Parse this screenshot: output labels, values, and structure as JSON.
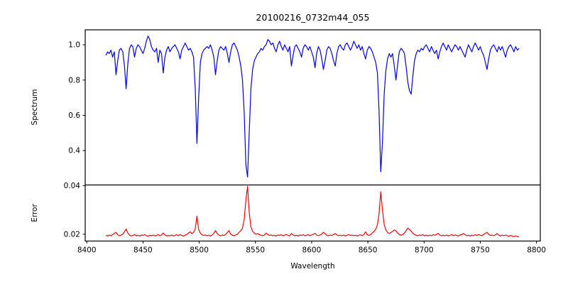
{
  "figure": {
    "title": "20100216_0732m44_055",
    "background": "#ffffff",
    "frame_color": "#000000"
  },
  "chart_data": [
    {
      "type": "line",
      "panel": "spectrum",
      "title": "20100216_0732m44_055",
      "ylabel": "Spectrum",
      "line_color": "#0000ee",
      "xlim": [
        8398.6,
        8803.4
      ],
      "ylim": [
        0.205,
        1.085
      ],
      "yticks": [
        1.0,
        0.8,
        0.6,
        0.4
      ],
      "yticklabels": [
        "1.0",
        "0.8",
        "0.6",
        "0.4"
      ],
      "grid": false,
      "legend": null,
      "x_start": 8417,
      "x_step": 1.5,
      "values": [
        0.94,
        0.96,
        0.95,
        0.97,
        0.93,
        0.96,
        0.83,
        0.91,
        0.97,
        0.98,
        0.96,
        0.88,
        0.75,
        0.89,
        0.98,
        1.0,
        0.99,
        0.93,
        0.98,
        1.0,
        0.99,
        0.97,
        0.95,
        0.98,
        1.02,
        1.05,
        1.03,
        0.99,
        0.97,
        0.96,
        0.98,
        0.9,
        0.97,
        0.95,
        0.84,
        0.93,
        0.97,
        0.99,
        0.96,
        0.98,
        0.99,
        1.0,
        0.98,
        0.96,
        0.92,
        0.97,
        0.99,
        1.01,
        0.99,
        0.97,
        0.98,
        0.96,
        0.93,
        0.75,
        0.44,
        0.7,
        0.9,
        0.95,
        0.97,
        0.98,
        0.99,
        0.98,
        1.0,
        0.97,
        0.93,
        0.83,
        0.91,
        0.97,
        0.99,
        0.98,
        0.97,
        0.99,
        0.95,
        0.9,
        0.96,
        1.0,
        1.01,
        0.99,
        0.97,
        0.93,
        0.88,
        0.8,
        0.62,
        0.32,
        0.25,
        0.5,
        0.75,
        0.86,
        0.91,
        0.93,
        0.95,
        0.96,
        0.98,
        0.97,
        0.99,
        1.0,
        1.03,
        1.02,
        1.0,
        1.01,
        0.98,
        0.96,
        1.0,
        1.02,
        0.99,
        0.97,
        1.0,
        0.98,
        0.96,
        0.99,
        0.88,
        0.94,
        0.99,
        1.0,
        0.98,
        0.96,
        0.93,
        0.98,
        1.0,
        0.99,
        0.97,
        0.99,
        0.96,
        0.93,
        0.87,
        0.95,
        0.99,
        0.97,
        0.92,
        0.86,
        0.91,
        0.97,
        0.99,
        0.98,
        0.95,
        0.91,
        0.88,
        0.95,
        0.99,
        1.0,
        0.98,
        0.97,
        1.0,
        1.01,
        0.99,
        0.97,
        0.99,
        1.02,
        1.0,
        0.98,
        1.0,
        0.97,
        0.99,
        0.95,
        0.92,
        0.97,
        0.99,
        0.98,
        0.96,
        0.93,
        0.9,
        0.84,
        0.62,
        0.28,
        0.45,
        0.72,
        0.85,
        0.92,
        0.95,
        0.93,
        0.95,
        0.88,
        0.8,
        0.89,
        0.96,
        0.98,
        0.97,
        0.95,
        0.88,
        0.79,
        0.74,
        0.72,
        0.82,
        0.91,
        0.95,
        0.97,
        0.96,
        0.98,
        0.97,
        0.99,
        1.0,
        0.98,
        0.96,
        0.99,
        0.97,
        0.95,
        0.97,
        0.92,
        0.96,
        0.99,
        1.01,
        0.99,
        0.97,
        1.0,
        0.98,
        0.96,
        0.98,
        1.0,
        0.99,
        0.97,
        0.99,
        0.97,
        0.95,
        0.93,
        0.97,
        1.0,
        0.98,
        0.96,
        0.99,
        1.01,
        0.99,
        0.97,
        0.99,
        0.96,
        0.94,
        0.9,
        0.86,
        0.92,
        0.97,
        0.99,
        1.0,
        0.98,
        0.96,
        0.99,
        0.97,
        0.99,
        0.96,
        0.93,
        0.97,
        0.99,
        1.0,
        0.98,
        0.96,
        0.99,
        0.97,
        0.98
      ]
    },
    {
      "type": "line",
      "panel": "error",
      "ylabel": "Error",
      "xlabel": "Wavelength",
      "line_color": "#ff0000",
      "xlim": [
        8398.6,
        8803.4
      ],
      "ylim": [
        0.0172,
        0.0403
      ],
      "yticks": [
        0.04,
        0.02
      ],
      "yticklabels": [
        "0.04",
        "0.02"
      ],
      "xticks": [
        8400,
        8450,
        8500,
        8550,
        8600,
        8650,
        8700,
        8750,
        8800
      ],
      "xticklabels": [
        "8400",
        "8450",
        "8500",
        "8550",
        "8600",
        "8650",
        "8700",
        "8750",
        "8800"
      ],
      "grid": false,
      "legend": null,
      "x_start": 8417,
      "x_step": 1.5,
      "values": [
        0.0196,
        0.0193,
        0.0197,
        0.0194,
        0.0199,
        0.0203,
        0.0208,
        0.0198,
        0.0194,
        0.0196,
        0.02,
        0.021,
        0.0222,
        0.0205,
        0.0196,
        0.0193,
        0.0195,
        0.0199,
        0.0194,
        0.0196,
        0.0193,
        0.0197,
        0.0195,
        0.0199,
        0.0194,
        0.0192,
        0.0196,
        0.0194,
        0.0197,
        0.0193,
        0.0195,
        0.0199,
        0.0194,
        0.0197,
        0.0205,
        0.0197,
        0.0193,
        0.0195,
        0.0194,
        0.0197,
        0.0193,
        0.0195,
        0.0198,
        0.0194,
        0.0199,
        0.0195,
        0.0193,
        0.0196,
        0.0199,
        0.0205,
        0.021,
        0.0202,
        0.0208,
        0.0222,
        0.0275,
        0.022,
        0.0205,
        0.0198,
        0.0195,
        0.0197,
        0.0194,
        0.0196,
        0.0193,
        0.0197,
        0.0204,
        0.0215,
        0.0203,
        0.0196,
        0.0194,
        0.0197,
        0.0195,
        0.0199,
        0.0207,
        0.0215,
        0.02,
        0.0196,
        0.0194,
        0.0197,
        0.02,
        0.0208,
        0.0215,
        0.0225,
        0.026,
        0.034,
        0.0398,
        0.029,
        0.023,
        0.0212,
        0.0205,
        0.02,
        0.0203,
        0.0198,
        0.0196,
        0.0194,
        0.0197,
        0.0205,
        0.0199,
        0.0195,
        0.0197,
        0.0194,
        0.0196,
        0.0193,
        0.0197,
        0.0195,
        0.0198,
        0.0194,
        0.0196,
        0.0199,
        0.0195,
        0.0193,
        0.0203,
        0.0197,
        0.0194,
        0.0196,
        0.0193,
        0.0197,
        0.0195,
        0.0198,
        0.0194,
        0.0196,
        0.0199,
        0.0194,
        0.0197,
        0.02,
        0.0204,
        0.0197,
        0.0194,
        0.0197,
        0.0201,
        0.0208,
        0.0203,
        0.0196,
        0.0194,
        0.0197,
        0.0195,
        0.0199,
        0.0203,
        0.0197,
        0.0194,
        0.0196,
        0.0194,
        0.0197,
        0.0193,
        0.0196,
        0.0199,
        0.0195,
        0.0197,
        0.0194,
        0.0196,
        0.0193,
        0.0196,
        0.0198,
        0.0194,
        0.0199,
        0.021,
        0.0198,
        0.0195,
        0.0199,
        0.0205,
        0.0212,
        0.022,
        0.024,
        0.0285,
        0.0375,
        0.03,
        0.024,
        0.0218,
        0.0208,
        0.0203,
        0.0207,
        0.0212,
        0.0218,
        0.0214,
        0.0205,
        0.0199,
        0.0196,
        0.0199,
        0.0205,
        0.0215,
        0.0225,
        0.022,
        0.0212,
        0.0204,
        0.0199,
        0.0196,
        0.0194,
        0.0197,
        0.0195,
        0.0198,
        0.0194,
        0.0196,
        0.0193,
        0.0197,
        0.0194,
        0.0198,
        0.0196,
        0.0199,
        0.0204,
        0.0197,
        0.0194,
        0.0196,
        0.0194,
        0.0197,
        0.0193,
        0.0196,
        0.0199,
        0.0194,
        0.0197,
        0.0195,
        0.0193,
        0.0197,
        0.0199,
        0.0203,
        0.0198,
        0.0194,
        0.0196,
        0.0193,
        0.0197,
        0.0194,
        0.0198,
        0.0195,
        0.0199,
        0.0196,
        0.0194,
        0.0199,
        0.0204,
        0.0208,
        0.02,
        0.0195,
        0.0197,
        0.0194,
        0.0198,
        0.0203,
        0.0196,
        0.0193,
        0.0197,
        0.0194,
        0.0197,
        0.0194,
        0.0192,
        0.0195,
        0.0192,
        0.019,
        0.0193,
        0.019,
        0.0189
      ]
    }
  ]
}
